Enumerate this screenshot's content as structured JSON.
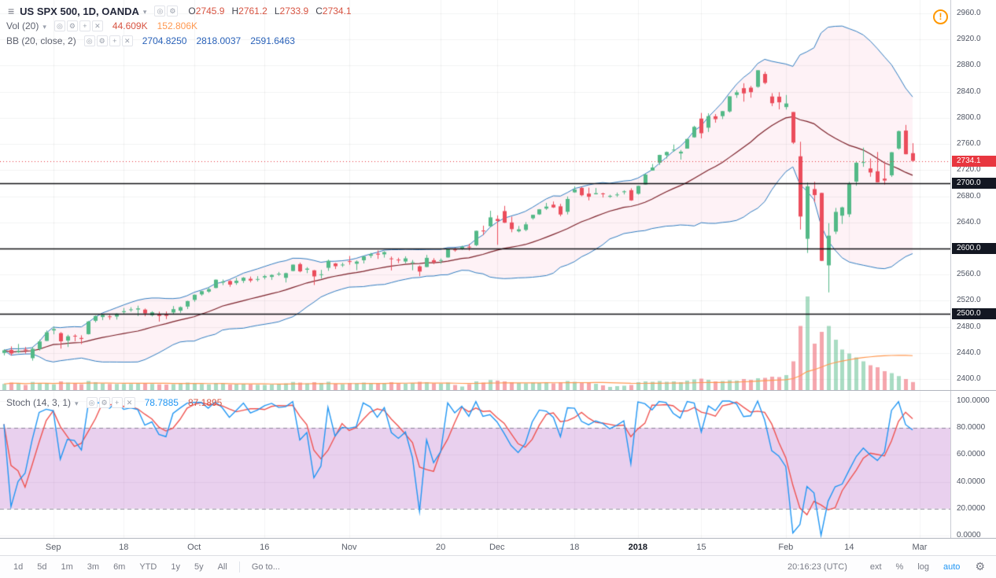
{
  "header": {
    "title": "US SPX 500, 1D, OANDA",
    "ohlc": [
      {
        "label": "O",
        "value": "2745.9"
      },
      {
        "label": "H",
        "value": "2761.2"
      },
      {
        "label": "L",
        "value": "2733.9"
      },
      {
        "label": "C",
        "value": "2734.1"
      }
    ]
  },
  "legend": {
    "volume": {
      "label": "Vol (20)",
      "value": "44.609K",
      "ma": "152.806K"
    },
    "bb": {
      "label": "BB (20, close, 2)",
      "values": [
        "2704.8250",
        "2818.0037",
        "2591.6463"
      ]
    },
    "stoch": {
      "label": "Stoch (14, 3, 1)",
      "k": "78.7885",
      "d": "87.1895"
    },
    "title_icons": [
      "eye",
      "gear"
    ],
    "indicator_icons": [
      "eye",
      "gear",
      "plus",
      "close"
    ]
  },
  "warning_icon": "!",
  "toolbar": {
    "ranges": [
      "1d",
      "5d",
      "1m",
      "3m",
      "6m",
      "YTD",
      "1y",
      "5y",
      "All"
    ],
    "goto": "Go to...",
    "clock": "20:16:23 (UTC)",
    "right": [
      {
        "label": "ext",
        "name": "ext-hours-button"
      },
      {
        "label": "%",
        "name": "percent-scale-button"
      },
      {
        "label": "log",
        "name": "log-scale-button"
      }
    ],
    "auto": "auto",
    "gear": "⚙"
  },
  "colors": {
    "up": "#53b987",
    "down": "#eb4d5c",
    "text_red": "#d75442",
    "text_orange": "#ff9850",
    "text_blue": "#2a62b9",
    "stoch_k_text": "#2196f3",
    "bb_line": "#2f7bbf",
    "bb_basis": "#7b2029",
    "bb_fill": "rgba(233,30,99,0.06)",
    "vol_up": "rgba(83,185,135,0.5)",
    "vol_down": "rgba(235,77,92,0.5)",
    "vol_ma": "#ff9850",
    "stoch_k": "#2196f3",
    "stoch_d": "#ef5350",
    "stoch_band": "rgba(156,39,176,0.22)",
    "level": "#101014",
    "level_badge": "#131722",
    "last_price": "#e8363f",
    "accent_blue": "#2196f3",
    "warning": "#ff9800"
  },
  "chart_data": {
    "type": "candlestick",
    "symbol": "US SPX 500",
    "interval": "1D",
    "exchange": "OANDA",
    "last_ohlc": {
      "open": 2745.9,
      "high": 2761.2,
      "low": 2733.9,
      "close": 2734.1
    },
    "price_axis": {
      "min": 2400,
      "max": 2960,
      "step": 40
    },
    "horizontal_levels": [
      2700,
      2600,
      2500
    ],
    "last_price": 2734.1,
    "overlays": {
      "bollinger": {
        "length": 20,
        "stdev": 2
      },
      "volume_ma_length": 20
    },
    "stoch": {
      "k_length": 14,
      "d_smoothing": 3,
      "k_smoothing": 1,
      "overbought": 80,
      "oversold": 20,
      "axis_ticks": [
        100,
        80,
        60,
        40,
        20,
        0
      ],
      "last_k": 78.7885,
      "last_d": 87.1895
    },
    "time_labels": [
      {
        "text": "Sep",
        "i": 7
      },
      {
        "text": "18",
        "i": 17
      },
      {
        "text": "Oct",
        "i": 27
      },
      {
        "text": "16",
        "i": 37
      },
      {
        "text": "Nov",
        "i": 49
      },
      {
        "text": "20",
        "i": 62
      },
      {
        "text": "Dec",
        "i": 70
      },
      {
        "text": "18",
        "i": 81
      },
      {
        "text": "2018",
        "i": 90,
        "major": true
      },
      {
        "text": "15",
        "i": 99
      },
      {
        "text": "Feb",
        "i": 111
      },
      {
        "text": "14",
        "i": 120
      },
      {
        "text": "Mar",
        "i": 130
      }
    ],
    "volume_unit": "K",
    "candles": [
      [
        2440.0,
        2445.6,
        2436.3,
        2444.0
      ],
      [
        2444.6,
        2450.0,
        2436.0,
        2439.0
      ],
      [
        2441.0,
        2453.7,
        2440.1,
        2443.1
      ],
      [
        2445.2,
        2449.1,
        2439.0,
        2444.2
      ],
      [
        2432.0,
        2449.1,
        2428.2,
        2446.3
      ],
      [
        2446.1,
        2460.3,
        2443.6,
        2457.6
      ],
      [
        2458.4,
        2474.4,
        2458.1,
        2471.6
      ],
      [
        2474.4,
        2480.4,
        2468.5,
        2476.6
      ],
      [
        2470.3,
        2471.9,
        2446.6,
        2457.8
      ],
      [
        2458.9,
        2467.8,
        2449.1,
        2465.5
      ],
      [
        2466.3,
        2468.6,
        2457.8,
        2465.1
      ],
      [
        2462.9,
        2467.0,
        2453.5,
        2461.4
      ],
      [
        2468.7,
        2488.9,
        2468.2,
        2488.1
      ],
      [
        2489.2,
        2497.4,
        2486.8,
        2496.5
      ],
      [
        2495.0,
        2499.4,
        2490.2,
        2498.4
      ],
      [
        2496.0,
        2498.4,
        2490.9,
        2495.6
      ],
      [
        2495.7,
        2500.7,
        2491.1,
        2500.2
      ],
      [
        2502.4,
        2508.9,
        2499.9,
        2503.9
      ],
      [
        2505.7,
        2510.0,
        2503.1,
        2506.7
      ],
      [
        2506.4,
        2512.4,
        2496.5,
        2508.2
      ],
      [
        2506.3,
        2508.0,
        2496.2,
        2500.6
      ],
      [
        2497.6,
        2503.9,
        2495.9,
        2502.2
      ],
      [
        2499.4,
        2503.2,
        2488.0,
        2496.7
      ],
      [
        2499.0,
        2503.5,
        2491.9,
        2496.8
      ],
      [
        2501.9,
        2511.8,
        2498.6,
        2507.0
      ],
      [
        2504.7,
        2511.2,
        2501.4,
        2510.1
      ],
      [
        2511.0,
        2519.9,
        2507.2,
        2519.4
      ],
      [
        2521.2,
        2529.5,
        2518.4,
        2529.1
      ],
      [
        2529.6,
        2535.1,
        2527.5,
        2534.6
      ],
      [
        2533.9,
        2540.5,
        2532.0,
        2537.7
      ],
      [
        2539.5,
        2552.5,
        2539.0,
        2552.1
      ],
      [
        2547.8,
        2552.4,
        2543.8,
        2549.3
      ],
      [
        2550.1,
        2551.4,
        2541.3,
        2544.7
      ],
      [
        2547.1,
        2555.2,
        2544.2,
        2550.6
      ],
      [
        2550.4,
        2556.2,
        2547.1,
        2555.2
      ],
      [
        2553.5,
        2557.0,
        2548.0,
        2550.9
      ],
      [
        2553.1,
        2557.6,
        2549.5,
        2553.2
      ],
      [
        2555.6,
        2559.7,
        2552.7,
        2557.6
      ],
      [
        2556.4,
        2560.4,
        2551.9,
        2559.4
      ],
      [
        2560.9,
        2564.0,
        2557.9,
        2561.3
      ],
      [
        2555.0,
        2562.9,
        2547.9,
        2562.1
      ],
      [
        2565.5,
        2575.4,
        2564.9,
        2575.2
      ],
      [
        2576.0,
        2578.3,
        2563.5,
        2564.9
      ],
      [
        2567.4,
        2571.4,
        2562.2,
        2569.1
      ],
      [
        2566.5,
        2567.0,
        2544.0,
        2557.2
      ],
      [
        2560.1,
        2567.2,
        2554.0,
        2560.4
      ],
      [
        2570.3,
        2582.9,
        2565.7,
        2581.1
      ],
      [
        2577.0,
        2577.8,
        2568.5,
        2572.8
      ],
      [
        2574.9,
        2578.3,
        2571.7,
        2575.3
      ],
      [
        2580.5,
        2588.4,
        2575.1,
        2579.4
      ],
      [
        2576.6,
        2581.6,
        2566.7,
        2579.9
      ],
      [
        2581.9,
        2588.4,
        2577.0,
        2587.8
      ],
      [
        2588.8,
        2593.2,
        2585.4,
        2591.1
      ],
      [
        2592.0,
        2597.0,
        2584.0,
        2590.6
      ],
      [
        2591.0,
        2595.8,
        2586.0,
        2594.4
      ],
      [
        2584.7,
        2587.6,
        2566.3,
        2584.6
      ],
      [
        2582.9,
        2585.8,
        2577.6,
        2582.3
      ],
      [
        2580.0,
        2588.0,
        2577.2,
        2584.8
      ],
      [
        2578.0,
        2582.3,
        2566.6,
        2578.9
      ],
      [
        2572.6,
        2574.0,
        2557.5,
        2564.6
      ],
      [
        2571.6,
        2590.1,
        2571.3,
        2585.6
      ],
      [
        2582.0,
        2585.1,
        2575.9,
        2578.9
      ],
      [
        2581.0,
        2584.6,
        2576.6,
        2582.1
      ],
      [
        2586.2,
        2599.6,
        2585.9,
        2599.0
      ],
      [
        2598.5,
        2600.9,
        2595.0,
        2597.1
      ],
      [
        2600.0,
        2604.2,
        2597.9,
        2602.4
      ],
      [
        2602.6,
        2607.0,
        2596.8,
        2601.4
      ],
      [
        2605.0,
        2627.3,
        2603.6,
        2627.0
      ],
      [
        2627.5,
        2634.9,
        2620.3,
        2626.1
      ],
      [
        2633.9,
        2657.7,
        2633.2,
        2647.6
      ],
      [
        2645.1,
        2650.6,
        2605.5,
        2642.2
      ],
      [
        2657.2,
        2665.2,
        2639.0,
        2639.4
      ],
      [
        2639.8,
        2648.7,
        2624.8,
        2629.6
      ],
      [
        2626.2,
        2634.4,
        2624.6,
        2629.3
      ],
      [
        2628.4,
        2640.4,
        2626.4,
        2636.9
      ],
      [
        2646.2,
        2651.6,
        2644.1,
        2651.5
      ],
      [
        2652.2,
        2660.3,
        2651.4,
        2659.9
      ],
      [
        2661.0,
        2669.7,
        2659.0,
        2664.1
      ],
      [
        2667.0,
        2671.9,
        2662.0,
        2662.8
      ],
      [
        2664.5,
        2668.3,
        2649.2,
        2652.0
      ],
      [
        2656.1,
        2679.6,
        2652.1,
        2675.8
      ],
      [
        2685.9,
        2695.0,
        2685.2,
        2690.2
      ],
      [
        2692.7,
        2694.4,
        2680.0,
        2681.5
      ],
      [
        2684.0,
        2693.1,
        2673.6,
        2679.2
      ],
      [
        2683.0,
        2692.6,
        2682.7,
        2684.6
      ],
      [
        2684.2,
        2685.4,
        2678.0,
        2683.3
      ],
      [
        2679.1,
        2682.3,
        2677.5,
        2680.5
      ],
      [
        2682.1,
        2685.6,
        2678.9,
        2682.6
      ],
      [
        2686.1,
        2689.1,
        2682.7,
        2687.5
      ],
      [
        2689.2,
        2692.1,
        2673.0,
        2673.6
      ],
      [
        2683.7,
        2696.1,
        2682.4,
        2695.8
      ],
      [
        2697.9,
        2714.4,
        2697.8,
        2713.1
      ],
      [
        2719.3,
        2729.3,
        2719.1,
        2724.0
      ],
      [
        2731.3,
        2743.5,
        2727.9,
        2743.2
      ],
      [
        2742.7,
        2748.5,
        2737.6,
        2747.7
      ],
      [
        2751.2,
        2759.1,
        2747.9,
        2751.3
      ],
      [
        2745.5,
        2750.8,
        2736.1,
        2748.2
      ],
      [
        2752.9,
        2767.9,
        2752.8,
        2767.6
      ],
      [
        2770.2,
        2787.9,
        2769.6,
        2786.2
      ],
      [
        2798.9,
        2807.5,
        2768.6,
        2776.4
      ],
      [
        2784.9,
        2807.0,
        2778.4,
        2802.6
      ],
      [
        2802.4,
        2805.8,
        2792.6,
        2798.0
      ],
      [
        2802.6,
        2810.3,
        2798.1,
        2810.3
      ],
      [
        2809.8,
        2833.0,
        2808.1,
        2833.0
      ],
      [
        2835.1,
        2842.2,
        2830.6,
        2839.1
      ],
      [
        2845.4,
        2853.0,
        2824.8,
        2837.5
      ],
      [
        2846.2,
        2848.9,
        2830.9,
        2839.3
      ],
      [
        2847.5,
        2872.9,
        2846.2,
        2872.9
      ],
      [
        2867.2,
        2870.6,
        2851.5,
        2853.5
      ],
      [
        2832.7,
        2837.8,
        2818.0,
        2822.4
      ],
      [
        2832.4,
        2839.3,
        2813.0,
        2823.8
      ],
      [
        2816.5,
        2835.0,
        2812.7,
        2822.0
      ],
      [
        2808.9,
        2808.9,
        2760.0,
        2762.1
      ],
      [
        2741.1,
        2763.4,
        2629.0,
        2648.9
      ],
      [
        2614.8,
        2701.0,
        2593.1,
        2695.1
      ],
      [
        2690.9,
        2702.1,
        2671.2,
        2681.7
      ],
      [
        2685.0,
        2685.3,
        2580.6,
        2581.0
      ],
      [
        2574.1,
        2638.7,
        2532.7,
        2619.6
      ],
      [
        2625.8,
        2662.1,
        2622.0,
        2656.0
      ],
      [
        2650.2,
        2664.0,
        2637.6,
        2662.9
      ],
      [
        2652.3,
        2702.1,
        2648.1,
        2698.6
      ],
      [
        2702.4,
        2733.6,
        2696.0,
        2731.2
      ],
      [
        2731.8,
        2754.4,
        2725.0,
        2732.2
      ],
      [
        2722.5,
        2737.7,
        2709.8,
        2716.3
      ],
      [
        2718.2,
        2747.7,
        2701.1,
        2701.3
      ],
      [
        2706.9,
        2731.3,
        2697.8,
        2704.0
      ],
      [
        2712.0,
        2747.6,
        2709.5,
        2747.3
      ],
      [
        2753.0,
        2780.6,
        2751.3,
        2779.6
      ],
      [
        2780.5,
        2789.2,
        2744.1,
        2744.3
      ],
      [
        2745.9,
        2761.2,
        2733.9,
        2734.1
      ]
    ],
    "volumes_k": [
      35,
      42,
      38,
      30,
      45,
      40,
      38,
      33,
      48,
      42,
      36,
      34,
      50,
      44,
      38,
      35,
      35,
      35,
      35,
      40,
      38,
      35,
      33,
      32,
      34,
      36,
      42,
      38,
      35,
      33,
      40,
      36,
      32,
      34,
      36,
      33,
      31,
      30,
      32,
      35,
      38,
      45,
      42,
      38,
      44,
      40,
      46,
      36,
      34,
      40,
      38,
      42,
      36,
      38,
      36,
      44,
      38,
      36,
      40,
      46,
      44,
      38,
      36,
      42,
      30,
      22,
      34,
      48,
      42,
      55,
      52,
      48,
      44,
      40,
      38,
      42,
      40,
      42,
      38,
      44,
      50,
      46,
      42,
      40,
      36,
      28,
      20,
      24,
      26,
      30,
      44,
      48,
      46,
      50,
      46,
      48,
      44,
      52,
      58,
      62,
      56,
      48,
      50,
      54,
      52,
      60,
      56,
      64,
      66,
      72,
      70,
      80,
      150,
      330,
      480,
      240,
      300,
      330,
      260,
      210,
      190,
      170,
      150,
      130,
      120,
      100,
      90,
      75,
      60,
      44.609
    ]
  }
}
